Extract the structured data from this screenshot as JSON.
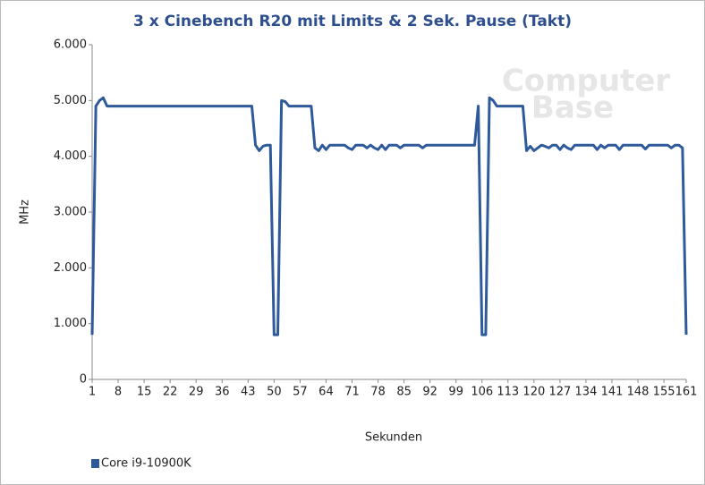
{
  "chart_data": {
    "type": "line",
    "title": "3 x Cinebench R20 mit Limits & 2 Sek. Pause (Takt)",
    "x_label": "Sekunden",
    "y_label": "MHz",
    "watermark": [
      "Computer",
      "Base"
    ],
    "x": [
      1,
      2,
      3,
      4,
      5,
      6,
      7,
      8,
      9,
      10,
      11,
      12,
      13,
      14,
      15,
      16,
      17,
      18,
      19,
      20,
      21,
      22,
      23,
      24,
      25,
      26,
      27,
      28,
      29,
      30,
      31,
      32,
      33,
      34,
      35,
      36,
      37,
      38,
      39,
      40,
      41,
      42,
      43,
      44,
      45,
      46,
      47,
      48,
      49,
      50,
      51,
      52,
      53,
      54,
      55,
      56,
      57,
      58,
      59,
      60,
      61,
      62,
      63,
      64,
      65,
      66,
      67,
      68,
      69,
      70,
      71,
      72,
      73,
      74,
      75,
      76,
      77,
      78,
      79,
      80,
      81,
      82,
      83,
      84,
      85,
      86,
      87,
      88,
      89,
      90,
      91,
      92,
      93,
      94,
      95,
      96,
      97,
      98,
      99,
      100,
      101,
      102,
      103,
      104,
      105,
      106,
      107,
      108,
      109,
      110,
      111,
      112,
      113,
      114,
      115,
      116,
      117,
      118,
      119,
      120,
      121,
      122,
      123,
      124,
      125,
      126,
      127,
      128,
      129,
      130,
      131,
      132,
      133,
      134,
      135,
      136,
      137,
      138,
      139,
      140,
      141,
      142,
      143,
      144,
      145,
      146,
      147,
      148,
      149,
      150,
      151,
      152,
      153,
      154,
      155,
      156,
      157,
      158,
      159,
      160,
      161
    ],
    "series": [
      {
        "name": "Core i9-10900K",
        "color": "#2e5a9c",
        "values": [
          800,
          4900,
          5000,
          5050,
          4900,
          4900,
          4900,
          4900,
          4900,
          4900,
          4900,
          4900,
          4900,
          4900,
          4900,
          4900,
          4900,
          4900,
          4900,
          4900,
          4900,
          4900,
          4900,
          4900,
          4900,
          4900,
          4900,
          4900,
          4900,
          4900,
          4900,
          4900,
          4900,
          4900,
          4900,
          4900,
          4900,
          4900,
          4900,
          4900,
          4900,
          4900,
          4900,
          4900,
          4200,
          4100,
          4180,
          4200,
          4200,
          800,
          800,
          5000,
          4980,
          4900,
          4900,
          4900,
          4900,
          4900,
          4900,
          4900,
          4150,
          4100,
          4200,
          4120,
          4200,
          4200,
          4200,
          4200,
          4200,
          4150,
          4120,
          4200,
          4200,
          4200,
          4150,
          4200,
          4150,
          4120,
          4200,
          4120,
          4200,
          4200,
          4200,
          4150,
          4200,
          4200,
          4200,
          4200,
          4200,
          4150,
          4200,
          4200,
          4200,
          4200,
          4200,
          4200,
          4200,
          4200,
          4200,
          4200,
          4200,
          4200,
          4200,
          4200,
          4900,
          800,
          800,
          5050,
          5000,
          4900,
          4900,
          4900,
          4900,
          4900,
          4900,
          4900,
          4900,
          4100,
          4180,
          4100,
          4150,
          4200,
          4180,
          4150,
          4200,
          4200,
          4120,
          4200,
          4150,
          4120,
          4200,
          4200,
          4200,
          4200,
          4200,
          4200,
          4120,
          4200,
          4150,
          4200,
          4200,
          4200,
          4120,
          4200,
          4200,
          4200,
          4200,
          4200,
          4200,
          4130,
          4200,
          4200,
          4200,
          4200,
          4200,
          4200,
          4150,
          4200,
          4200,
          4150,
          800
        ]
      }
    ],
    "xlim": [
      1,
      161
    ],
    "xticks": [
      1,
      8,
      15,
      22,
      29,
      36,
      43,
      50,
      57,
      64,
      71,
      78,
      85,
      92,
      99,
      106,
      113,
      120,
      127,
      134,
      141,
      148,
      155,
      161
    ],
    "ylim": [
      0,
      6000
    ],
    "yticks": [
      0,
      {
        "value": 1000,
        "label": "1.000"
      },
      {
        "value": 2000,
        "label": "2.000"
      },
      {
        "value": 3000,
        "label": "3.000"
      },
      {
        "value": 4000,
        "label": "4.000"
      },
      {
        "value": 5000,
        "label": "5.000"
      },
      {
        "value": 6000,
        "label": "6.000"
      }
    ],
    "grid": false,
    "legend": "bottom-left"
  }
}
